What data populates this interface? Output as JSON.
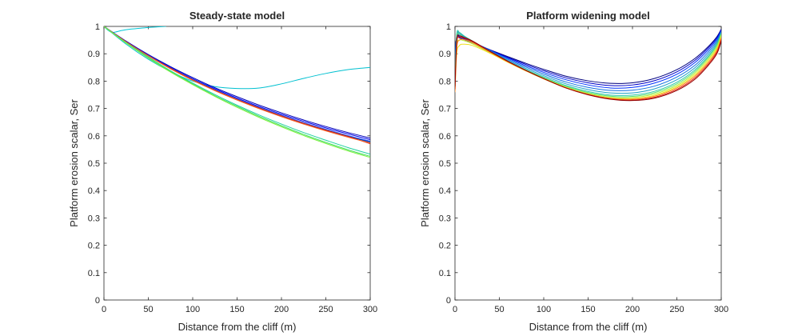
{
  "chart_data": [
    {
      "type": "line",
      "title": "Steady-state model",
      "xlabel": "Distance from the cliff (m)",
      "ylabel": "Platform erosion scalar, Ser",
      "xlim": [
        0,
        300
      ],
      "ylim": [
        0,
        1
      ],
      "xticks": [
        0,
        50,
        100,
        150,
        200,
        250,
        300
      ],
      "yticks": [
        0,
        0.1,
        0.2,
        0.3,
        0.4,
        0.5,
        0.6,
        0.7,
        0.8,
        0.9,
        1
      ],
      "grid": false,
      "legend": "none",
      "series": [
        {
          "color": "#00c8d8",
          "x": [
            0,
            5,
            10,
            20,
            30,
            40,
            50,
            60,
            70
          ],
          "y": [
            1,
            0.985,
            0.978,
            0.985,
            0.99,
            0.993,
            0.996,
            0.998,
            1
          ]
        },
        {
          "color": "#00c0d0",
          "x": [
            0,
            25,
            50,
            75,
            100,
            125,
            150,
            175,
            200,
            225,
            250,
            275,
            300
          ],
          "y": [
            1,
            0.935,
            0.88,
            0.835,
            0.8,
            0.78,
            0.773,
            0.775,
            0.79,
            0.81,
            0.828,
            0.842,
            0.85
          ]
        },
        {
          "color": "#00007f",
          "x": [
            0,
            25,
            50,
            75,
            100,
            125,
            150,
            175,
            200,
            225,
            250,
            275,
            300
          ],
          "y": [
            1,
            0.944,
            0.893,
            0.847,
            0.806,
            0.768,
            0.734,
            0.703,
            0.674,
            0.647,
            0.622,
            0.599,
            0.578
          ]
        },
        {
          "color": "#0000b8",
          "x": [
            0,
            25,
            50,
            75,
            100,
            125,
            150,
            175,
            200,
            225,
            250,
            275,
            300
          ],
          "y": [
            1,
            0.946,
            0.897,
            0.853,
            0.813,
            0.776,
            0.743,
            0.712,
            0.684,
            0.658,
            0.634,
            0.612,
            0.592
          ]
        },
        {
          "color": "#0000f0",
          "x": [
            0,
            25,
            50,
            75,
            100,
            125,
            150,
            175,
            200,
            225,
            250,
            275,
            300
          ],
          "y": [
            1,
            0.945,
            0.895,
            0.85,
            0.809,
            0.772,
            0.738,
            0.707,
            0.679,
            0.653,
            0.629,
            0.607,
            0.586
          ]
        },
        {
          "color": "#2060ff",
          "x": [
            0,
            25,
            50,
            75,
            100,
            125,
            150,
            175,
            200,
            225,
            250,
            275,
            300
          ],
          "y": [
            1,
            0.944,
            0.894,
            0.848,
            0.807,
            0.769,
            0.735,
            0.704,
            0.675,
            0.648,
            0.624,
            0.601,
            0.58
          ]
        },
        {
          "color": "#3090d0",
          "x": [
            0,
            25,
            50,
            75,
            100,
            125,
            150,
            175,
            200,
            225,
            250,
            275,
            300
          ],
          "y": [
            1,
            0.943,
            0.892,
            0.846,
            0.804,
            0.766,
            0.731,
            0.7,
            0.671,
            0.644,
            0.619,
            0.596,
            0.575
          ]
        },
        {
          "color": "#d02010",
          "x": [
            0,
            25,
            50,
            75,
            100,
            125,
            150,
            175,
            200,
            225,
            250,
            275,
            300
          ],
          "y": [
            1,
            0.944,
            0.893,
            0.847,
            0.805,
            0.767,
            0.733,
            0.702,
            0.673,
            0.646,
            0.621,
            0.598,
            0.571
          ]
        },
        {
          "color": "#ff6020",
          "x": [
            0,
            25,
            50,
            75,
            100,
            125,
            150,
            175,
            200,
            225,
            250,
            275,
            300
          ],
          "y": [
            1,
            0.943,
            0.892,
            0.845,
            0.803,
            0.765,
            0.731,
            0.699,
            0.67,
            0.643,
            0.618,
            0.595,
            0.574
          ]
        },
        {
          "color": "#20d0a0",
          "x": [
            0,
            25,
            50,
            75,
            100,
            125,
            150,
            175,
            200,
            225,
            250,
            275,
            300
          ],
          "y": [
            1,
            0.941,
            0.888,
            0.838,
            0.793,
            0.751,
            0.712,
            0.676,
            0.643,
            0.612,
            0.584,
            0.557,
            0.533
          ]
        },
        {
          "color": "#40e060",
          "x": [
            0,
            25,
            50,
            75,
            100,
            125,
            150,
            175,
            200,
            225,
            250,
            275,
            300
          ],
          "y": [
            1,
            0.94,
            0.886,
            0.836,
            0.79,
            0.747,
            0.708,
            0.671,
            0.637,
            0.605,
            0.576,
            0.549,
            0.525
          ]
        },
        {
          "color": "#80f040",
          "x": [
            0,
            25,
            50,
            75,
            100,
            125,
            150,
            175,
            200,
            225,
            250,
            275,
            300
          ],
          "y": [
            1,
            0.939,
            0.884,
            0.833,
            0.787,
            0.744,
            0.704,
            0.667,
            0.633,
            0.601,
            0.572,
            0.545,
            0.521
          ]
        }
      ]
    },
    {
      "type": "line",
      "title": "Platform widening model",
      "xlabel": "Distance from the cliff (m)",
      "ylabel": "Platform erosion scalar, Ser",
      "xlim": [
        0,
        300
      ],
      "ylim": [
        0,
        1
      ],
      "xticks": [
        0,
        50,
        100,
        150,
        200,
        250,
        300
      ],
      "yticks": [
        0,
        0.1,
        0.2,
        0.3,
        0.4,
        0.5,
        0.6,
        0.7,
        0.8,
        0.9,
        1
      ],
      "grid": false,
      "legend": "none",
      "series": [
        {
          "color": "#00007f",
          "x": [
            0,
            2,
            5,
            10,
            20,
            40,
            60,
            80,
            100,
            125,
            150,
            175,
            200,
            225,
            250,
            270,
            285,
            295,
            300
          ],
          "y": [
            0.92,
            0.96,
            0.958,
            0.952,
            0.94,
            0.914,
            0.889,
            0.865,
            0.843,
            0.818,
            0.801,
            0.792,
            0.794,
            0.81,
            0.842,
            0.882,
            0.925,
            0.962,
            0.99
          ]
        },
        {
          "color": "#0000c8",
          "x": [
            0,
            2,
            5,
            10,
            20,
            40,
            60,
            80,
            100,
            125,
            150,
            175,
            200,
            225,
            250,
            270,
            285,
            295,
            300
          ],
          "y": [
            0.9,
            0.962,
            0.962,
            0.955,
            0.942,
            0.913,
            0.886,
            0.861,
            0.838,
            0.812,
            0.794,
            0.784,
            0.786,
            0.802,
            0.834,
            0.875,
            0.92,
            0.958,
            0.988
          ]
        },
        {
          "color": "#0030ff",
          "x": [
            0,
            2,
            5,
            10,
            20,
            40,
            60,
            80,
            100,
            125,
            150,
            175,
            200,
            225,
            250,
            270,
            285,
            295,
            300
          ],
          "y": [
            0.88,
            0.965,
            0.966,
            0.958,
            0.943,
            0.912,
            0.883,
            0.856,
            0.832,
            0.805,
            0.786,
            0.775,
            0.777,
            0.793,
            0.825,
            0.867,
            0.913,
            0.953,
            0.985
          ]
        },
        {
          "color": "#1070e0",
          "x": [
            0,
            2,
            5,
            10,
            20,
            40,
            60,
            80,
            100,
            125,
            150,
            175,
            200,
            225,
            250,
            270,
            285,
            295,
            300
          ],
          "y": [
            0.86,
            0.968,
            0.97,
            0.961,
            0.944,
            0.911,
            0.879,
            0.851,
            0.826,
            0.797,
            0.777,
            0.766,
            0.767,
            0.782,
            0.815,
            0.857,
            0.905,
            0.947,
            0.982
          ]
        },
        {
          "color": "#20a0c8",
          "x": [
            0,
            2,
            5,
            10,
            20,
            40,
            60,
            80,
            100,
            125,
            150,
            175,
            200,
            225,
            250,
            270,
            285,
            295,
            300
          ],
          "y": [
            0.84,
            0.97,
            0.974,
            0.964,
            0.945,
            0.909,
            0.875,
            0.846,
            0.82,
            0.79,
            0.769,
            0.757,
            0.757,
            0.772,
            0.805,
            0.848,
            0.897,
            0.941,
            0.978
          ]
        },
        {
          "color": "#30c8a8",
          "x": [
            0,
            2,
            5,
            10,
            20,
            40,
            60,
            80,
            100,
            125,
            150,
            175,
            200,
            225,
            250,
            270,
            285,
            295,
            300
          ],
          "y": [
            0.82,
            0.972,
            0.978,
            0.966,
            0.946,
            0.907,
            0.872,
            0.842,
            0.815,
            0.784,
            0.762,
            0.749,
            0.749,
            0.763,
            0.796,
            0.84,
            0.89,
            0.935,
            0.975
          ]
        },
        {
          "color": "#60e070",
          "x": [
            0,
            2,
            5,
            10,
            20,
            40,
            60,
            80,
            100,
            125,
            150,
            175,
            200,
            225,
            250,
            270,
            285,
            295,
            300
          ],
          "y": [
            0.8,
            0.96,
            0.97,
            0.96,
            0.942,
            0.905,
            0.87,
            0.84,
            0.812,
            0.781,
            0.758,
            0.745,
            0.744,
            0.758,
            0.79,
            0.834,
            0.885,
            0.93,
            0.972
          ]
        },
        {
          "color": "#b8f030",
          "x": [
            0,
            2,
            5,
            10,
            20,
            40,
            60,
            80,
            100,
            125,
            150,
            175,
            200,
            225,
            250,
            270,
            285,
            295,
            300
          ],
          "y": [
            0.78,
            0.93,
            0.95,
            0.948,
            0.936,
            0.903,
            0.869,
            0.838,
            0.81,
            0.778,
            0.755,
            0.741,
            0.74,
            0.753,
            0.784,
            0.828,
            0.879,
            0.924,
            0.968
          ]
        },
        {
          "color": "#f0e020",
          "x": [
            0,
            2,
            5,
            10,
            20,
            40,
            60,
            80,
            100,
            125,
            150,
            175,
            200,
            225,
            250,
            270,
            285,
            295,
            300
          ],
          "y": [
            0.76,
            0.9,
            0.93,
            0.935,
            0.93,
            0.901,
            0.868,
            0.837,
            0.808,
            0.776,
            0.752,
            0.738,
            0.736,
            0.748,
            0.779,
            0.822,
            0.873,
            0.918,
            0.963
          ]
        },
        {
          "color": "#ff8020",
          "x": [
            0,
            2,
            5,
            10,
            20,
            40,
            60,
            80,
            100,
            125,
            150,
            175,
            200,
            225,
            250,
            270,
            285,
            295,
            300
          ],
          "y": [
            0.76,
            0.92,
            0.95,
            0.952,
            0.94,
            0.905,
            0.87,
            0.838,
            0.809,
            0.776,
            0.752,
            0.737,
            0.734,
            0.745,
            0.775,
            0.817,
            0.867,
            0.912,
            0.958
          ]
        },
        {
          "color": "#e02010",
          "x": [
            0,
            2,
            5,
            10,
            20,
            40,
            60,
            80,
            100,
            125,
            150,
            175,
            200,
            225,
            250,
            270,
            285,
            295,
            300
          ],
          "y": [
            0.77,
            0.94,
            0.96,
            0.958,
            0.944,
            0.907,
            0.871,
            0.839,
            0.809,
            0.775,
            0.751,
            0.735,
            0.731,
            0.741,
            0.77,
            0.811,
            0.861,
            0.906,
            0.952
          ]
        },
        {
          "color": "#900000",
          "x": [
            0,
            2,
            5,
            10,
            20,
            40,
            60,
            80,
            100,
            125,
            150,
            175,
            200,
            225,
            250,
            270,
            285,
            295,
            300
          ],
          "y": [
            0.78,
            0.95,
            0.965,
            0.96,
            0.946,
            0.908,
            0.872,
            0.839,
            0.809,
            0.775,
            0.75,
            0.734,
            0.729,
            0.738,
            0.766,
            0.806,
            0.856,
            0.9,
            0.946
          ]
        }
      ]
    }
  ]
}
